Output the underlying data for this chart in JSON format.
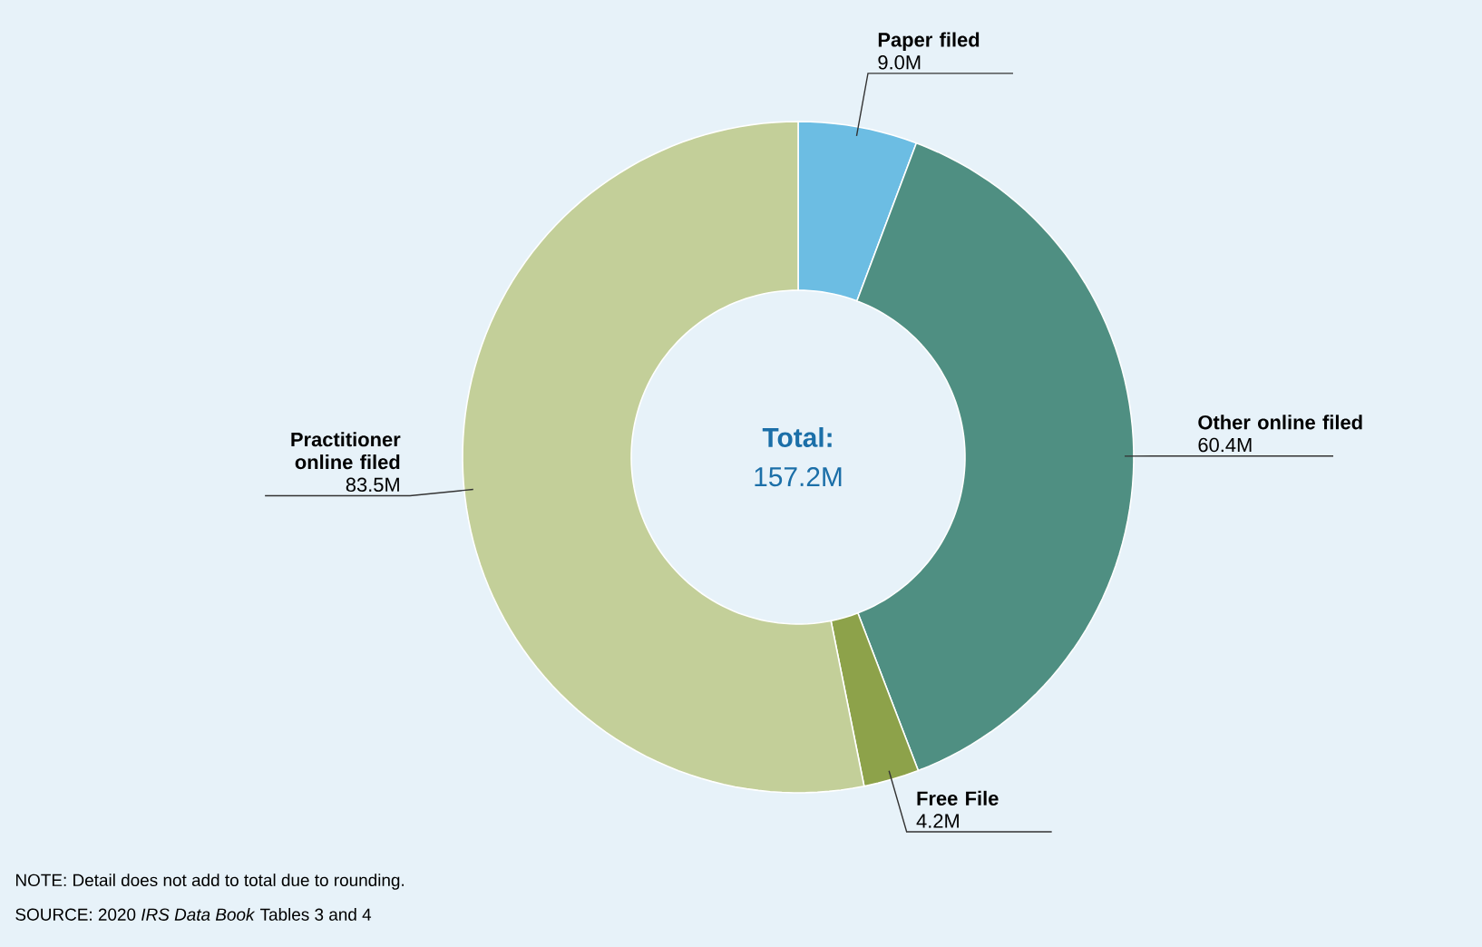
{
  "chart_data": {
    "type": "donut",
    "categories": [
      "Paper filed",
      "Other online filed",
      "Free File",
      "Practitioner online filed"
    ],
    "values": [
      9.0,
      60.4,
      4.2,
      83.5
    ],
    "value_labels": [
      "9.0M",
      "60.4M",
      "4.2M",
      "83.5M"
    ],
    "colors": [
      "#6cbde3",
      "#4f8f82",
      "#8da24a",
      "#c3cf99"
    ],
    "annotations": [
      "Total:",
      "157.2M",
      "NOTE: Detail does not add to total due to rounding.",
      "SOURCE: 2020 *IRS Data Book* Tables 3 and 4"
    ]
  }
}
